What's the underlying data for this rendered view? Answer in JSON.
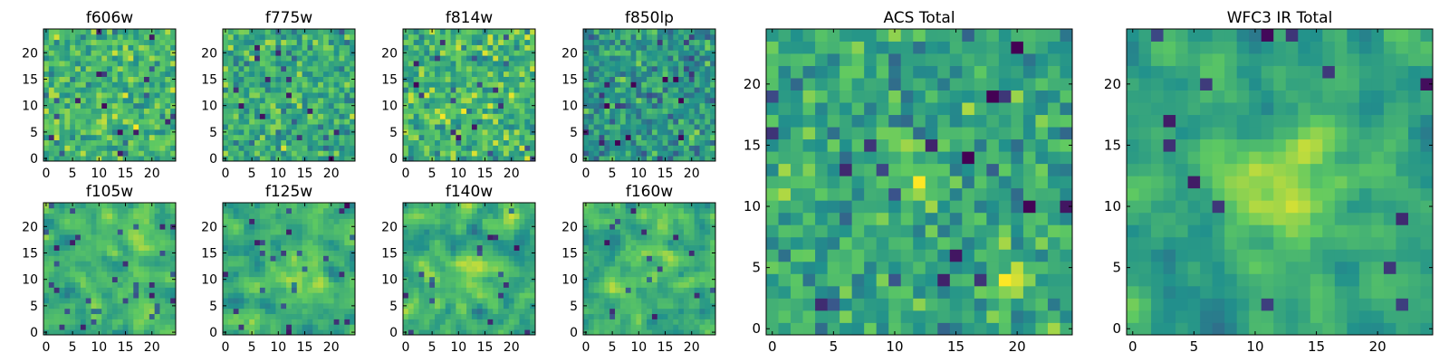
{
  "figure": {
    "colormap": "viridis",
    "colors": [
      "#440154",
      "#3b528b",
      "#21918c",
      "#5ec962",
      "#fde725"
    ]
  },
  "chart_data": [
    {
      "type": "heatmap",
      "title": "f606w",
      "grid_size": 25,
      "xlim": [
        0,
        24
      ],
      "ylim": [
        0,
        24
      ],
      "x_ticks": [
        0,
        5,
        10,
        15,
        20
      ],
      "y_ticks": [
        0,
        5,
        10,
        15,
        20
      ],
      "texture": "noise",
      "mean_level": 0.66,
      "noise": 0.22,
      "seed": 11,
      "blobs": []
    },
    {
      "type": "heatmap",
      "title": "f775w",
      "grid_size": 25,
      "xlim": [
        0,
        24
      ],
      "ylim": [
        0,
        24
      ],
      "x_ticks": [
        0,
        5,
        10,
        15,
        20
      ],
      "y_ticks": [
        0,
        5,
        10,
        15,
        20
      ],
      "texture": "noise",
      "mean_level": 0.62,
      "noise": 0.22,
      "seed": 23,
      "blobs": []
    },
    {
      "type": "heatmap",
      "title": "f814w",
      "grid_size": 25,
      "xlim": [
        0,
        24
      ],
      "ylim": [
        0,
        24
      ],
      "x_ticks": [
        0,
        5,
        10,
        15,
        20
      ],
      "y_ticks": [
        0,
        5,
        10,
        15,
        20
      ],
      "texture": "noise",
      "mean_level": 0.66,
      "noise": 0.24,
      "seed": 37,
      "blobs": []
    },
    {
      "type": "heatmap",
      "title": "f850lp",
      "grid_size": 25,
      "xlim": [
        0,
        24
      ],
      "ylim": [
        0,
        24
      ],
      "x_ticks": [
        0,
        5,
        10,
        15,
        20
      ],
      "y_ticks": [
        0,
        5,
        10,
        15,
        20
      ],
      "texture": "noise",
      "mean_level": 0.52,
      "noise": 0.22,
      "seed": 41,
      "blobs": [
        {
          "x": 20,
          "y": 4,
          "amp": 0.4,
          "sigma": 1.0
        }
      ]
    },
    {
      "type": "heatmap",
      "title": "f105w",
      "grid_size": 25,
      "xlim": [
        0,
        24
      ],
      "ylim": [
        0,
        24
      ],
      "x_ticks": [
        0,
        5,
        10,
        15,
        20
      ],
      "y_ticks": [
        0,
        5,
        10,
        15,
        20
      ],
      "texture": "smooth",
      "mean_level": 0.66,
      "noise": 0.16,
      "seed": 53,
      "blobs": []
    },
    {
      "type": "heatmap",
      "title": "f125w",
      "grid_size": 25,
      "xlim": [
        0,
        24
      ],
      "ylim": [
        0,
        24
      ],
      "x_ticks": [
        0,
        5,
        10,
        15,
        20
      ],
      "y_ticks": [
        0,
        5,
        10,
        15,
        20
      ],
      "texture": "smooth",
      "mean_level": 0.64,
      "noise": 0.16,
      "seed": 67,
      "blobs": [
        {
          "x": 13,
          "y": 12,
          "amp": 0.2,
          "sigma": 3.0
        }
      ]
    },
    {
      "type": "heatmap",
      "title": "f140w",
      "grid_size": 25,
      "xlim": [
        0,
        24
      ],
      "ylim": [
        0,
        24
      ],
      "x_ticks": [
        0,
        5,
        10,
        15,
        20
      ],
      "y_ticks": [
        0,
        5,
        10,
        15,
        20
      ],
      "texture": "smooth",
      "mean_level": 0.62,
      "noise": 0.18,
      "seed": 71,
      "blobs": [
        {
          "x": 13,
          "y": 11,
          "amp": 0.18,
          "sigma": 3.0
        }
      ]
    },
    {
      "type": "heatmap",
      "title": "f160w",
      "grid_size": 25,
      "xlim": [
        0,
        24
      ],
      "ylim": [
        0,
        24
      ],
      "x_ticks": [
        0,
        5,
        10,
        15,
        20
      ],
      "y_ticks": [
        0,
        5,
        10,
        15,
        20
      ],
      "texture": "smooth",
      "mean_level": 0.62,
      "noise": 0.18,
      "seed": 89,
      "blobs": [
        {
          "x": 12,
          "y": 12,
          "amp": 0.15,
          "sigma": 3.5
        }
      ]
    },
    {
      "type": "heatmap",
      "title": "ACS Total",
      "grid_size": 25,
      "xlim": [
        0,
        24
      ],
      "ylim": [
        0,
        24
      ],
      "x_ticks": [
        0,
        5,
        10,
        15,
        20
      ],
      "y_ticks": [
        0,
        5,
        10,
        15,
        20
      ],
      "texture": "noise",
      "mean_level": 0.6,
      "noise": 0.2,
      "seed": 101,
      "blobs": [
        {
          "x": 12,
          "y": 12,
          "amp": 0.35,
          "sigma": 1.0
        },
        {
          "x": 10,
          "y": 15,
          "amp": 0.3,
          "sigma": 0.9
        },
        {
          "x": 20,
          "y": 4,
          "amp": 0.4,
          "sigma": 1.0
        }
      ]
    },
    {
      "type": "heatmap",
      "title": "WFC3 IR Total",
      "grid_size": 25,
      "xlim": [
        0,
        24
      ],
      "ylim": [
        0,
        24
      ],
      "x_ticks": [
        0,
        5,
        10,
        15,
        20
      ],
      "y_ticks": [
        0,
        5,
        10,
        15,
        20
      ],
      "texture": "smooth",
      "mean_level": 0.58,
      "noise": 0.15,
      "seed": 113,
      "blobs": [
        {
          "x": 13,
          "y": 12,
          "amp": 0.38,
          "sigma": 3.0
        }
      ]
    }
  ]
}
